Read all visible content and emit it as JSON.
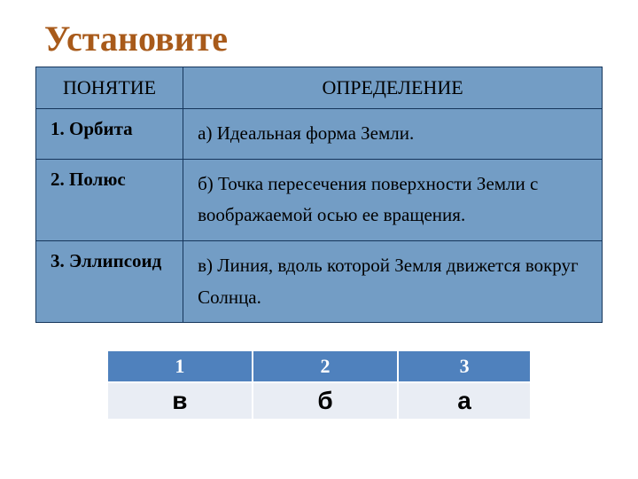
{
  "title": {
    "text": "Установите",
    "color": "#a85a1a"
  },
  "mainTable": {
    "headers": {
      "concept": "ПОНЯТИЕ",
      "definition": "ОПРЕДЕЛЕНИЕ"
    },
    "rows": [
      {
        "concept": "1. Орбита",
        "definition": "а)    Идеальная форма Земли."
      },
      {
        "concept": "2. Полюс",
        "definition": "б) Точка пересечения поверхности Земли с воображаемой осью ее вращения."
      },
      {
        "concept": "3. Эллипсоид",
        "definition": "в) Линия, вдоль которой Земля движется вокруг Солнца."
      }
    ],
    "bgColor": "#739dc5",
    "borderColor": "#16365c",
    "textColor": "#000000"
  },
  "answerTable": {
    "headers": [
      "1",
      "2",
      "3"
    ],
    "answers": [
      "в",
      "б",
      "а"
    ],
    "headerBgColor": "#4f81bd",
    "headerTextColor": "#ffffff",
    "answerBgColor": "#e9edf4",
    "answerTextColor": "#000000"
  }
}
